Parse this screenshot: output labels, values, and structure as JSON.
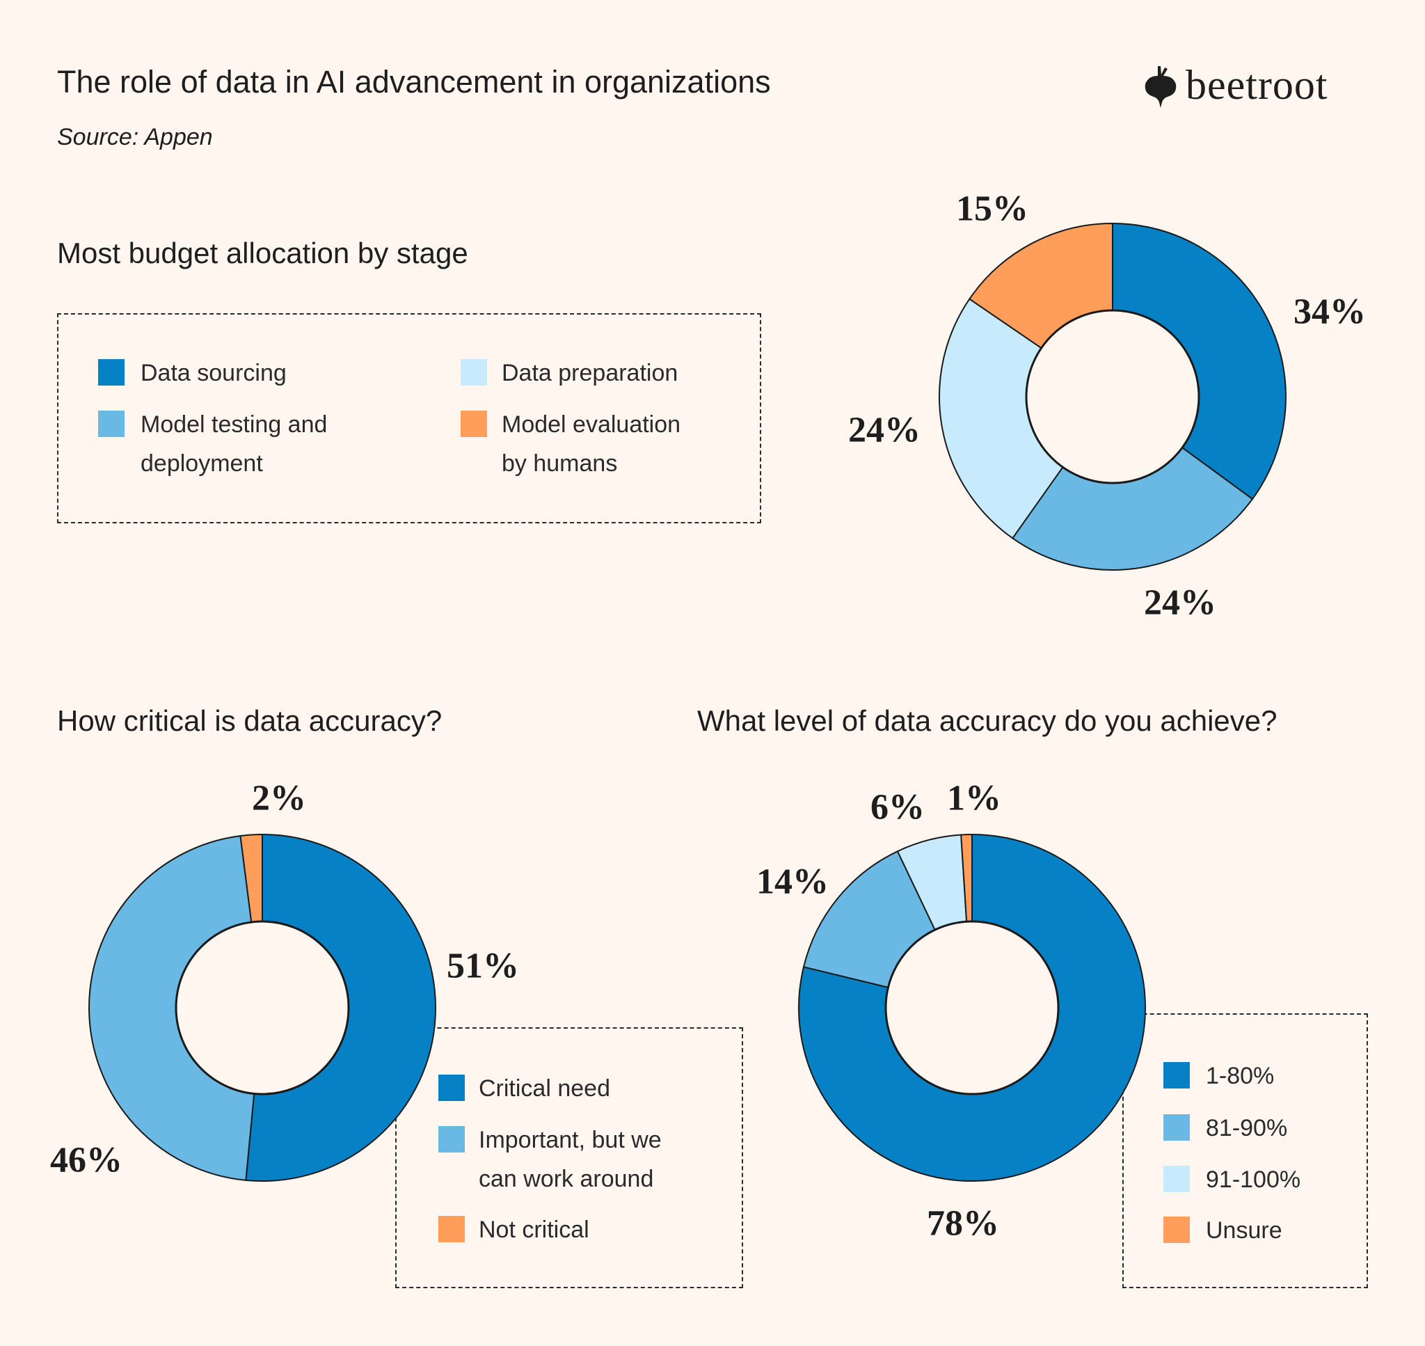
{
  "header": {
    "title": "The role of data in AI advancement in organizations",
    "source": "Source: Appen",
    "logo_text": "beetroot",
    "logo_icon": "beetroot-icon"
  },
  "colors": {
    "background": "#fff6f0",
    "blue_dark": "#0781c5",
    "blue_mid": "#6ab9e4",
    "blue_light": "#c7eafc",
    "orange": "#fe9e5a",
    "outline": "#1a1a1a"
  },
  "chart_data": [
    {
      "type": "pie",
      "style": "donut",
      "title": "Most budget allocation by stage",
      "categories": [
        "Data sourcing",
        "Model testing and deployment",
        "Data preparation",
        "Model evaluation by humans"
      ],
      "legend_lines": [
        [
          "Data sourcing"
        ],
        [
          "Model testing and",
          "deployment"
        ],
        [
          "Data preparation"
        ],
        [
          "Model evaluation",
          "by humans"
        ]
      ],
      "values": [
        34,
        24,
        24,
        15
      ],
      "labels": [
        "34%",
        "24%",
        "24%",
        "15%"
      ],
      "colors": [
        "#0781c5",
        "#6ab9e4",
        "#c7eafc",
        "#fe9e5a"
      ],
      "legend_placement": "left"
    },
    {
      "type": "pie",
      "style": "donut",
      "title": "How critical is data accuracy?",
      "categories": [
        "Critical need",
        "Important, but we can work around",
        "Not critical"
      ],
      "legend_lines": [
        [
          "Critical need"
        ],
        [
          "Important, but we",
          "can work around"
        ],
        [
          "Not critical"
        ]
      ],
      "values": [
        51,
        46,
        2
      ],
      "labels": [
        "51%",
        "46%",
        "2%"
      ],
      "colors": [
        "#0781c5",
        "#6ab9e4",
        "#fe9e5a"
      ],
      "legend_placement": "bottom-right"
    },
    {
      "type": "pie",
      "style": "donut",
      "title": "What level of data accuracy do you achieve?",
      "categories": [
        "1-80%",
        "81-90%",
        "91-100%",
        "Unsure"
      ],
      "legend_lines": [
        [
          "1-80%"
        ],
        [
          "81-90%"
        ],
        [
          "91-100%"
        ],
        [
          "Unsure"
        ]
      ],
      "values": [
        78,
        14,
        6,
        1
      ],
      "labels": [
        "78%",
        "14%",
        "6%",
        "1%"
      ],
      "colors": [
        "#0781c5",
        "#6ab9e4",
        "#c7eafc",
        "#fe9e5a"
      ],
      "legend_placement": "bottom-right"
    }
  ]
}
